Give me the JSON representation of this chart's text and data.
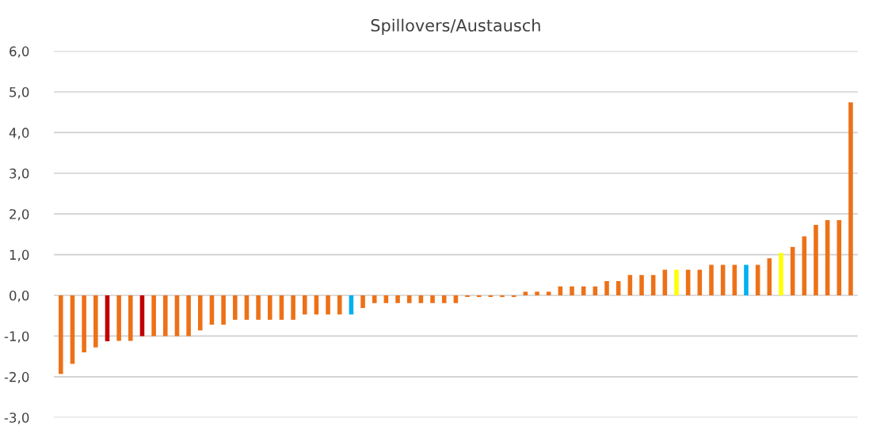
{
  "chart_data": {
    "type": "bar",
    "title": "Spillovers/Austausch",
    "categories": [
      null,
      null,
      null,
      null,
      null,
      null,
      null,
      null,
      null,
      null,
      null,
      null,
      null,
      null,
      null,
      null,
      null,
      null,
      null,
      null,
      null,
      null,
      null,
      null,
      null,
      null,
      null,
      null,
      null,
      null,
      null,
      null,
      null,
      null,
      null,
      null,
      null,
      null,
      null,
      null,
      null,
      null,
      null,
      null,
      null,
      null,
      null,
      null,
      null,
      null,
      null,
      null,
      null,
      null,
      null,
      null,
      null,
      null,
      null,
      null,
      null,
      null,
      null,
      null,
      null,
      null,
      null,
      null,
      null
    ],
    "values": [
      -1.93,
      -1.68,
      -1.4,
      -1.28,
      -1.13,
      -1.12,
      -1.12,
      -1.0,
      -1.0,
      -1.0,
      -1.0,
      -1.0,
      -0.86,
      -0.72,
      -0.72,
      -0.6,
      -0.6,
      -0.6,
      -0.6,
      -0.6,
      -0.6,
      -0.47,
      -0.47,
      -0.47,
      -0.47,
      -0.47,
      -0.31,
      -0.19,
      -0.19,
      -0.19,
      -0.19,
      -0.19,
      -0.19,
      -0.19,
      -0.19,
      -0.04,
      -0.04,
      -0.04,
      -0.04,
      -0.04,
      0.09,
      0.09,
      0.09,
      0.22,
      0.22,
      0.22,
      0.22,
      0.35,
      0.35,
      0.5,
      0.5,
      0.5,
      0.63,
      0.63,
      0.63,
      0.63,
      0.75,
      0.75,
      0.75,
      0.75,
      0.75,
      0.91,
      1.04,
      1.19,
      1.45,
      1.73,
      1.85,
      1.85,
      4.74
    ],
    "colors": [
      "#ed7117",
      "#ed7117",
      "#ed7117",
      "#ed7117",
      "#c00000",
      "#ed7117",
      "#ed7117",
      "#c00000",
      "#ed7117",
      "#ed7117",
      "#ed7117",
      "#ed7117",
      "#ed7117",
      "#ed7117",
      "#ed7117",
      "#ed7117",
      "#ed7117",
      "#ed7117",
      "#ed7117",
      "#ed7117",
      "#ed7117",
      "#ed7117",
      "#ed7117",
      "#ed7117",
      "#ed7117",
      "#00b0f0",
      "#ed7117",
      "#ed7117",
      "#ed7117",
      "#ed7117",
      "#ed7117",
      "#ed7117",
      "#ed7117",
      "#ed7117",
      "#ed7117",
      "#ed7117",
      "#ed7117",
      "#ed7117",
      "#ed7117",
      "#ed7117",
      "#ed7117",
      "#ed7117",
      "#ed7117",
      "#ed7117",
      "#ed7117",
      "#ed7117",
      "#ed7117",
      "#ed7117",
      "#ed7117",
      "#ed7117",
      "#ed7117",
      "#ed7117",
      "#ed7117",
      "#ffff00",
      "#ed7117",
      "#ed7117",
      "#ed7117",
      "#ed7117",
      "#ed7117",
      "#00b0f0",
      "#ed7117",
      "#ed7117",
      "#ffff00",
      "#ed7117",
      "#ed7117",
      "#ed7117",
      "#ed7117",
      "#ed7117",
      "#ed7117"
    ],
    "ylim": [
      -3,
      6
    ],
    "yticks": [
      {
        "value": -3,
        "label": "-3,0"
      },
      {
        "value": -2,
        "label": "-2,0"
      },
      {
        "value": -1,
        "label": "-1,0"
      },
      {
        "value": 0,
        "label": "0,0"
      },
      {
        "value": 1,
        "label": "1,0"
      },
      {
        "value": 2,
        "label": "2,0"
      },
      {
        "value": 3,
        "label": "3,0"
      },
      {
        "value": 4,
        "label": "4,0"
      },
      {
        "value": 5,
        "label": "5,0"
      },
      {
        "value": 6,
        "label": "6,0"
      }
    ],
    "grid": "y"
  }
}
